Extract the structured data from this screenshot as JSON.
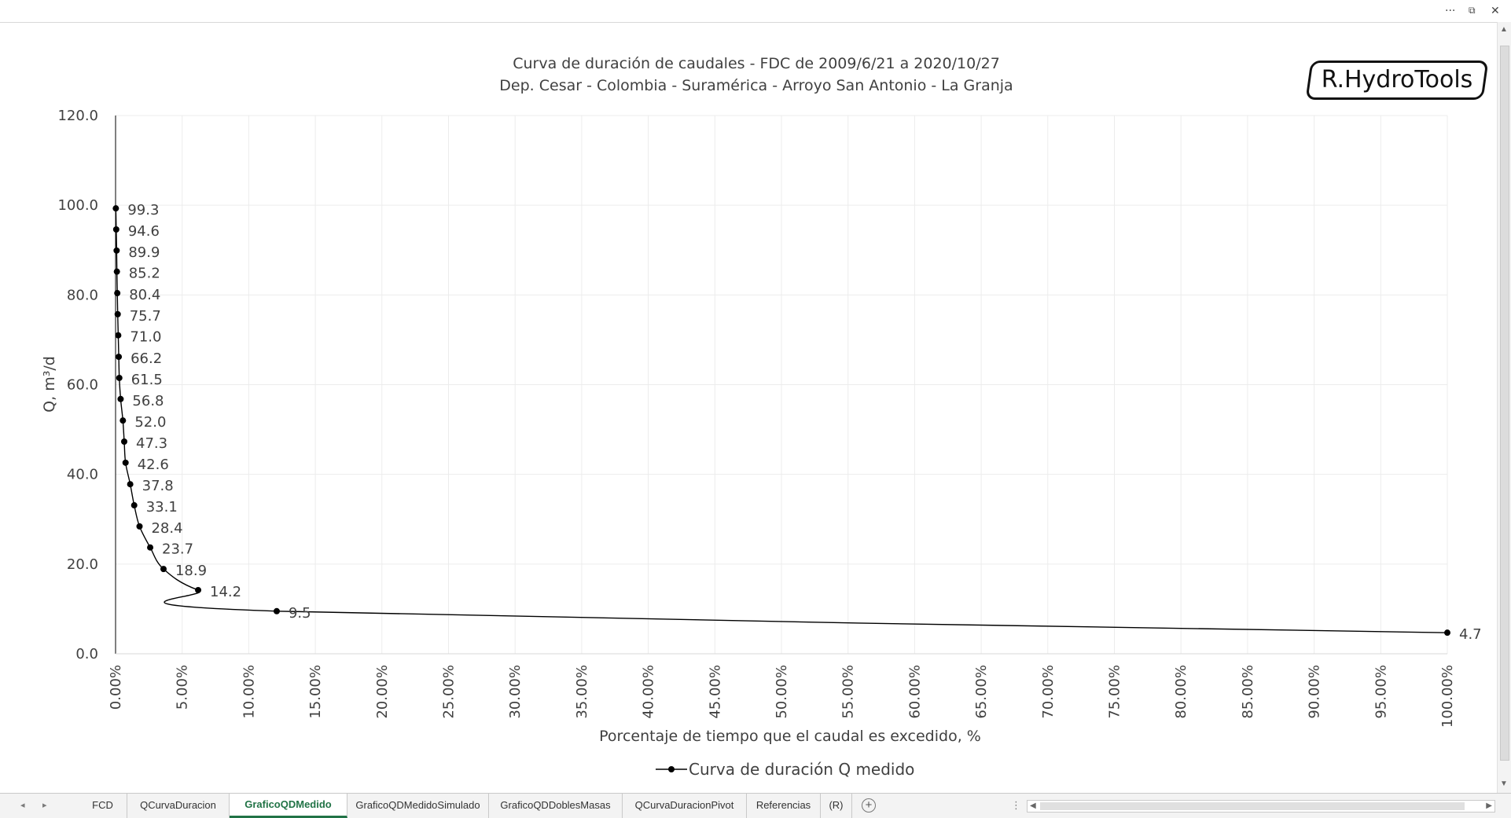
{
  "window": {
    "more_icon": "ellipsis-icon",
    "restore_icon": "restore-icon",
    "close_icon": "close-icon"
  },
  "logo_text": "R.HydroTools",
  "chart_data": {
    "type": "line",
    "title": "Curva de duración de caudales - FDC de 2009/6/21 a 2020/10/27",
    "subtitle": "Dep. Cesar - Colombia - Suramérica - Arroyo San Antonio - La Granja",
    "xlabel": "Porcentaje de tiempo que el caudal es excedido, %",
    "ylabel": "Q, m³/d",
    "xlim": [
      0,
      100
    ],
    "ylim": [
      0,
      120
    ],
    "grid": true,
    "legend_position": "bottom",
    "x_ticks": [
      "0.00%",
      "5.00%",
      "10.00%",
      "15.00%",
      "20.00%",
      "25.00%",
      "30.00%",
      "35.00%",
      "40.00%",
      "45.00%",
      "50.00%",
      "55.00%",
      "60.00%",
      "65.00%",
      "70.00%",
      "75.00%",
      "80.00%",
      "85.00%",
      "90.00%",
      "95.00%",
      "100.00%"
    ],
    "y_ticks": [
      "0.0",
      "20.0",
      "40.0",
      "60.0",
      "80.0",
      "100.0",
      "120.0"
    ],
    "series": [
      {
        "name": "Curva de duración Q medido",
        "color": "#000000",
        "x": [
          0.02,
          0.05,
          0.08,
          0.1,
          0.13,
          0.16,
          0.2,
          0.24,
          0.28,
          0.38,
          0.55,
          0.65,
          0.75,
          1.1,
          1.4,
          1.8,
          2.6,
          3.6,
          6.2,
          12.1,
          100.0
        ],
        "y": [
          99.3,
          94.6,
          89.9,
          85.2,
          80.4,
          75.7,
          71.0,
          66.2,
          61.5,
          56.8,
          52.0,
          47.3,
          42.6,
          37.8,
          33.1,
          28.4,
          23.7,
          18.9,
          14.2,
          9.5,
          4.7
        ],
        "labels": [
          "99.3",
          "94.6",
          "89.9",
          "85.2",
          "80.4",
          "75.7",
          "71.0",
          "66.2",
          "61.5",
          "56.8",
          "52.0",
          "47.3",
          "42.6",
          "37.8",
          "33.1",
          "28.4",
          "23.7",
          "18.9",
          "14.2",
          "9.5",
          "4.7"
        ]
      }
    ]
  },
  "tabs": {
    "prev_icon": "chevron-left-icon",
    "next_icon": "chevron-right-icon",
    "items": [
      {
        "label": "FCD",
        "active": false
      },
      {
        "label": "QCurvaDuracion",
        "active": false
      },
      {
        "label": "GraficoQDMedido",
        "active": true
      },
      {
        "label": "GraficoQDMedidoSimulado",
        "active": false
      },
      {
        "label": "GraficoQDDoblesMasas",
        "active": false
      },
      {
        "label": "QCurvaDuracionPivot",
        "active": false
      },
      {
        "label": "Referencias",
        "active": false
      },
      {
        "label": "(R)",
        "active": false
      }
    ],
    "add_icon": "plus-circle-icon"
  }
}
